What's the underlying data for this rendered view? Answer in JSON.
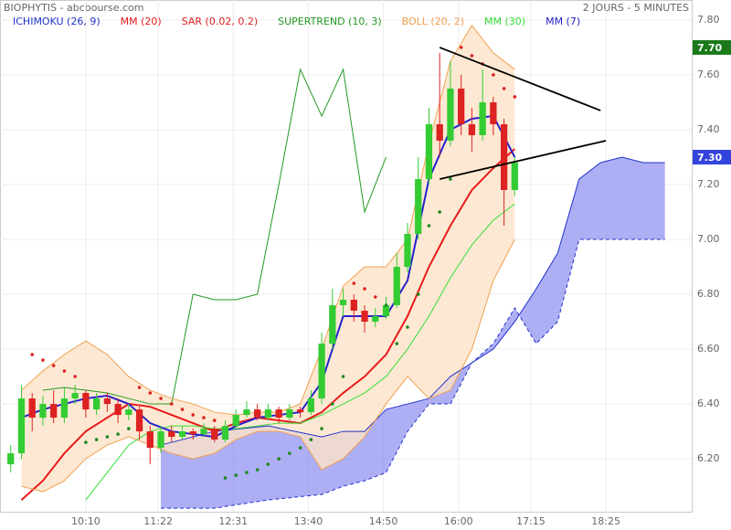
{
  "chart_data": {
    "type": "candlestick",
    "title": "BIOPHYTIS - abcbourse.com",
    "subtitle": "2 JOURS - 5 MINUTES",
    "x": [
      2,
      4,
      6,
      8,
      10,
      12,
      14,
      16,
      18,
      20,
      22,
      24,
      26,
      28,
      30,
      32,
      34,
      36,
      38,
      40,
      42,
      44,
      46,
      48,
      50,
      52,
      54,
      56,
      58,
      60,
      62,
      64,
      66,
      68,
      70,
      72,
      74,
      76,
      78,
      80,
      82,
      84,
      86,
      88,
      90,
      92,
      94,
      96
    ],
    "open": [
      6.18,
      6.22,
      6.42,
      6.35,
      6.4,
      6.35,
      6.42,
      6.44,
      6.38,
      6.42,
      6.4,
      6.36,
      6.38,
      6.3,
      6.24,
      6.3,
      6.28,
      6.3,
      6.29,
      6.31,
      6.27,
      6.32,
      6.36,
      6.38,
      6.35,
      6.38,
      6.35,
      6.38,
      6.37,
      6.42,
      6.62,
      6.76,
      6.78,
      6.74,
      6.7,
      6.72,
      6.76,
      6.9,
      7.02,
      7.22,
      7.42,
      7.36,
      7.55,
      7.42,
      7.38,
      7.5,
      7.42,
      7.18
    ],
    "high": [
      6.25,
      6.47,
      6.44,
      6.43,
      6.45,
      6.46,
      6.47,
      6.45,
      6.44,
      6.44,
      6.42,
      6.4,
      6.39,
      6.32,
      6.32,
      6.32,
      6.32,
      6.31,
      6.33,
      6.32,
      6.34,
      6.38,
      6.41,
      6.4,
      6.4,
      6.39,
      6.4,
      6.39,
      6.45,
      6.66,
      6.82,
      6.82,
      6.8,
      6.76,
      6.75,
      6.79,
      6.95,
      7.06,
      7.3,
      7.48,
      7.68,
      7.65,
      7.6,
      7.48,
      7.62,
      7.52,
      7.44,
      7.3
    ],
    "low": [
      6.15,
      6.2,
      6.3,
      6.32,
      6.33,
      6.33,
      6.4,
      6.35,
      6.36,
      6.37,
      6.33,
      6.34,
      6.27,
      6.18,
      6.22,
      6.26,
      6.27,
      6.27,
      6.28,
      6.26,
      6.26,
      6.31,
      6.35,
      6.34,
      6.34,
      6.33,
      6.34,
      6.35,
      6.36,
      6.4,
      6.6,
      6.72,
      6.7,
      6.66,
      6.68,
      6.71,
      6.75,
      6.88,
      7.0,
      7.2,
      7.3,
      7.34,
      7.38,
      7.32,
      7.36,
      7.38,
      7.05,
      7.16
    ],
    "close": [
      6.22,
      6.42,
      6.35,
      6.4,
      6.35,
      6.42,
      6.44,
      6.38,
      6.42,
      6.4,
      6.36,
      6.38,
      6.3,
      6.24,
      6.3,
      6.28,
      6.3,
      6.29,
      6.31,
      6.27,
      6.32,
      6.36,
      6.38,
      6.35,
      6.38,
      6.35,
      6.38,
      6.37,
      6.42,
      6.62,
      6.76,
      6.78,
      6.74,
      6.7,
      6.72,
      6.76,
      6.9,
      7.02,
      7.22,
      7.42,
      7.36,
      7.55,
      7.42,
      7.38,
      7.5,
      7.42,
      7.18,
      7.28
    ],
    "up_color": "#33cc33",
    "down_color": "#dd2222",
    "xlim": [
      0,
      129
    ],
    "xticks": [
      {
        "value": 16,
        "label": "10:10"
      },
      {
        "value": 29.5,
        "label": "11:22"
      },
      {
        "value": 43.5,
        "label": "12:31"
      },
      {
        "value": 57.5,
        "label": "13:40"
      },
      {
        "value": 71.5,
        "label": "14:50"
      },
      {
        "value": 85.5,
        "label": "16:00"
      },
      {
        "value": 99,
        "label": "17:15"
      },
      {
        "value": 113,
        "label": "18:25"
      }
    ],
    "ylim": [
      6.007,
      7.873
    ],
    "yticks": [
      {
        "value": 6.2,
        "label": "6.20"
      },
      {
        "value": 6.4,
        "label": "6.40"
      },
      {
        "value": 6.6,
        "label": "6.60"
      },
      {
        "value": 6.8,
        "label": "6.80"
      },
      {
        "value": 7,
        "label": "7.00"
      },
      {
        "value": 7.2,
        "label": "7.20"
      },
      {
        "value": 7.4,
        "label": "7.40"
      },
      {
        "value": 7.6,
        "label": "7.60"
      },
      {
        "value": 7.8,
        "label": "7.80"
      }
    ],
    "grid": true,
    "line_x": [
      0,
      4,
      8,
      12,
      16,
      20,
      24,
      28,
      32,
      36,
      40,
      44,
      48,
      52,
      56,
      60,
      64,
      68,
      72,
      76,
      80,
      84,
      88,
      92,
      96
    ],
    "indicators": [
      {
        "name": "ICHIMOKU (26, 9)",
        "color": "#2233cc",
        "kind": "cloud",
        "fill": "#8c8cf0",
        "x": [
          30,
          40,
          50,
          60,
          64,
          68,
          72,
          76,
          80,
          84,
          88,
          92,
          96,
          100,
          104,
          108,
          112,
          116,
          120,
          124
        ],
        "span_a": [
          6.25,
          6.3,
          6.32,
          6.28,
          6.3,
          6.3,
          6.38,
          6.4,
          6.42,
          6.5,
          6.55,
          6.6,
          6.7,
          6.82,
          6.95,
          7.22,
          7.28,
          7.3,
          7.28,
          7.28
        ],
        "span_b": [
          6.02,
          6.02,
          6.05,
          6.07,
          6.1,
          6.12,
          6.15,
          6.3,
          6.4,
          6.4,
          6.55,
          6.62,
          6.75,
          6.62,
          6.7,
          7.0,
          7.0,
          7.0,
          7.0,
          7.0
        ]
      },
      {
        "name": "MM (20)",
        "color": "#e8191a",
        "kind": "line",
        "width": 2,
        "values": [
          null,
          6.05,
          6.12,
          6.22,
          6.3,
          6.35,
          6.4,
          6.39,
          6.36,
          6.33,
          6.3,
          6.33,
          6.35,
          6.34,
          6.33,
          6.37,
          6.44,
          6.5,
          6.58,
          6.72,
          6.9,
          7.05,
          7.18,
          7.26,
          7.33
        ]
      },
      {
        "name": "SAR (0.02, 0.2)",
        "color": "#dd2222",
        "below_color": "#228822",
        "kind": "dots",
        "values": [
          null,
          null,
          6.58,
          6.56,
          6.54,
          6.52,
          6.5,
          6.26,
          6.27,
          6.28,
          6.29,
          6.31,
          6.46,
          6.44,
          6.42,
          6.4,
          6.38,
          6.36,
          6.35,
          6.34,
          6.13,
          6.14,
          6.15,
          6.16,
          6.18,
          6.2,
          6.22,
          6.24,
          6.27,
          6.31,
          6.4,
          6.5,
          6.84,
          6.82,
          6.79,
          6.76,
          6.62,
          6.68,
          6.8,
          7.05,
          7.1,
          7.22,
          7.7,
          7.67,
          7.64,
          7.6,
          7.55,
          7.52
        ]
      },
      {
        "name": "SUPERTREND (10, 3)",
        "color": "#229922",
        "kind": "line",
        "width": 1,
        "values": [
          null,
          null,
          6.45,
          6.46,
          6.45,
          6.44,
          6.42,
          6.4,
          6.4,
          6.8,
          6.78,
          6.78,
          6.8,
          7.2,
          7.62,
          7.45,
          7.62,
          7.1,
          7.3,
          null,
          null,
          null,
          null,
          null,
          null
        ]
      },
      {
        "name": "BOLL (20, 2)",
        "color": "#f0a050",
        "kind": "band",
        "fill": "#fde3c8",
        "upper": [
          null,
          6.45,
          6.52,
          6.58,
          6.63,
          6.58,
          6.5,
          6.45,
          6.42,
          6.4,
          6.37,
          6.36,
          6.37,
          6.37,
          6.4,
          6.6,
          6.83,
          6.9,
          6.9,
          7.0,
          7.35,
          7.65,
          7.78,
          7.68,
          7.62
        ],
        "lower": [
          null,
          6.1,
          6.08,
          6.12,
          6.2,
          6.25,
          6.28,
          6.25,
          6.22,
          6.2,
          6.22,
          6.27,
          6.3,
          6.3,
          6.28,
          6.16,
          6.2,
          6.28,
          6.4,
          6.5,
          6.42,
          6.45,
          6.6,
          6.85,
          7.0
        ]
      },
      {
        "name": "MM (30)",
        "color": "#33dd33",
        "kind": "line",
        "width": 1,
        "values": [
          null,
          null,
          null,
          null,
          6.05,
          6.15,
          6.25,
          6.3,
          6.32,
          6.32,
          6.31,
          6.31,
          6.32,
          6.33,
          6.33,
          6.36,
          6.4,
          6.44,
          6.5,
          6.6,
          6.72,
          6.86,
          6.98,
          7.07,
          7.13
        ]
      },
      {
        "name": "MM (7)",
        "color": "#2222cc",
        "kind": "line",
        "width": 2,
        "values": [
          null,
          6.35,
          6.38,
          6.4,
          6.42,
          6.43,
          6.4,
          6.33,
          6.3,
          6.29,
          6.28,
          6.32,
          6.35,
          6.36,
          6.37,
          6.48,
          6.72,
          6.72,
          6.72,
          6.85,
          7.22,
          7.4,
          7.44,
          7.45,
          7.3
        ]
      }
    ],
    "trendlines": [
      {
        "x": [
          82,
          112
        ],
        "values": [
          7.7,
          7.47
        ]
      },
      {
        "x": [
          82,
          113
        ],
        "values": [
          7.22,
          7.36
        ]
      }
    ],
    "price_labels": [
      {
        "value": 7.7,
        "label": "7.70",
        "color": "#1a7a1a"
      },
      {
        "value": 7.3,
        "label": "7.30",
        "color": "#3344dd"
      }
    ]
  }
}
